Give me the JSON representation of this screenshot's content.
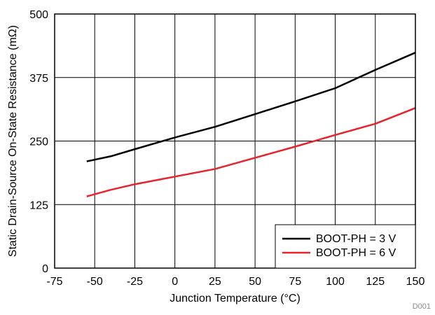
{
  "chart_data": {
    "type": "line",
    "title": "",
    "xlabel": "Junction Temperature (°C)",
    "ylabel": "Static Drain-Source On-State Resistance (mΩ)",
    "xlim": [
      -75,
      150
    ],
    "ylim": [
      0,
      500
    ],
    "xticks": [
      -75,
      -50,
      -25,
      0,
      25,
      50,
      75,
      100,
      125,
      150
    ],
    "yticks": [
      0,
      125,
      250,
      375,
      500
    ],
    "grid": true,
    "legend_position": "bottom-right",
    "colors": {
      "series_1": "#000000",
      "series_2": "#e8232a"
    },
    "series": [
      {
        "name": "BOOT-PH = 3 V",
        "color": "#000000",
        "x": [
          -55,
          -40,
          -25,
          0,
          25,
          50,
          75,
          100,
          125,
          150
        ],
        "values": [
          210,
          220,
          234,
          257,
          278,
          303,
          328,
          354,
          390,
          424
        ]
      },
      {
        "name": "BOOT-PH = 6 V",
        "color": "#e8232a",
        "x": [
          -55,
          -40,
          -25,
          0,
          25,
          50,
          75,
          100,
          125,
          150
        ],
        "values": [
          141,
          154,
          165,
          180,
          195,
          217,
          239,
          262,
          284,
          315
        ]
      }
    ],
    "annotation": "D001"
  }
}
